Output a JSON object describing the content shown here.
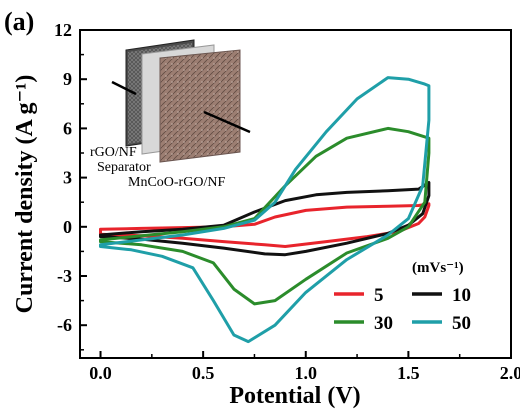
{
  "panel_label": "(a)",
  "inset": {
    "label_rgo": "rGO/NF",
    "label_separator": "Separator",
    "label_mnco": "MnCoO-rGO/NF"
  },
  "legend": {
    "title": "(mVs⁻¹)"
  },
  "chart_data": {
    "type": "line",
    "title": "",
    "xlabel": "Potential (V)",
    "ylabel": "Current density (A g⁻¹)",
    "xlim": [
      -0.1,
      2.0
    ],
    "ylim": [
      -8,
      12
    ],
    "x_ticks": [
      0.0,
      0.5,
      1.0,
      1.5,
      2.0
    ],
    "x_tick_labels": [
      "0.0",
      "0.5",
      "1.0",
      "1.5",
      "2.0"
    ],
    "y_ticks": [
      -6,
      -3,
      0,
      3,
      6,
      9,
      12
    ],
    "y_tick_labels": [
      "-6",
      "-3",
      "0",
      "3",
      "6",
      "9",
      "12"
    ],
    "grid": false,
    "legend_position": "bottom-right",
    "series": [
      {
        "name": "5",
        "color": "#e8242c",
        "anodic": [
          [
            0.0,
            -0.15
          ],
          [
            0.2,
            -0.1
          ],
          [
            0.4,
            -0.05
          ],
          [
            0.6,
            0.0
          ],
          [
            0.75,
            0.15
          ],
          [
            0.85,
            0.6
          ],
          [
            1.0,
            1.0
          ],
          [
            1.2,
            1.2
          ],
          [
            1.4,
            1.25
          ],
          [
            1.55,
            1.3
          ],
          [
            1.6,
            1.4
          ]
        ],
        "cathodic": [
          [
            1.6,
            1.3
          ],
          [
            1.58,
            0.6
          ],
          [
            1.55,
            0.2
          ],
          [
            1.45,
            -0.3
          ],
          [
            1.3,
            -0.6
          ],
          [
            1.1,
            -0.9
          ],
          [
            0.9,
            -1.2
          ],
          [
            0.8,
            -1.1
          ],
          [
            0.6,
            -0.9
          ],
          [
            0.4,
            -0.7
          ],
          [
            0.2,
            -0.55
          ],
          [
            0.0,
            -0.45
          ]
        ]
      },
      {
        "name": "10",
        "color": "#111111",
        "anodic": [
          [
            0.0,
            -0.5
          ],
          [
            0.2,
            -0.3
          ],
          [
            0.4,
            -0.15
          ],
          [
            0.6,
            0.1
          ],
          [
            0.75,
            0.9
          ],
          [
            0.9,
            1.6
          ],
          [
            1.05,
            1.95
          ],
          [
            1.2,
            2.1
          ],
          [
            1.4,
            2.2
          ],
          [
            1.55,
            2.3
          ],
          [
            1.6,
            2.7
          ]
        ],
        "cathodic": [
          [
            1.6,
            1.9
          ],
          [
            1.57,
            0.8
          ],
          [
            1.5,
            0.1
          ],
          [
            1.4,
            -0.4
          ],
          [
            1.2,
            -1.0
          ],
          [
            1.0,
            -1.5
          ],
          [
            0.9,
            -1.7
          ],
          [
            0.8,
            -1.65
          ],
          [
            0.6,
            -1.3
          ],
          [
            0.4,
            -1.0
          ],
          [
            0.2,
            -0.75
          ],
          [
            0.0,
            -0.6
          ]
        ]
      },
      {
        "name": "30",
        "color": "#2b8c2b",
        "anodic": [
          [
            0.0,
            -0.8
          ],
          [
            0.2,
            -0.55
          ],
          [
            0.4,
            -0.3
          ],
          [
            0.6,
            0.0
          ],
          [
            0.75,
            0.5
          ],
          [
            0.9,
            2.5
          ],
          [
            1.05,
            4.3
          ],
          [
            1.2,
            5.4
          ],
          [
            1.4,
            6.0
          ],
          [
            1.5,
            5.8
          ],
          [
            1.6,
            5.4
          ]
        ],
        "cathodic": [
          [
            1.6,
            4.5
          ],
          [
            1.58,
            1.5
          ],
          [
            1.5,
            0.0
          ],
          [
            1.4,
            -0.7
          ],
          [
            1.2,
            -1.6
          ],
          [
            1.0,
            -3.2
          ],
          [
            0.85,
            -4.5
          ],
          [
            0.75,
            -4.7
          ],
          [
            0.65,
            -3.8
          ],
          [
            0.55,
            -2.2
          ],
          [
            0.4,
            -1.5
          ],
          [
            0.2,
            -1.1
          ],
          [
            0.0,
            -0.9
          ]
        ]
      },
      {
        "name": "50",
        "color": "#1f9fa8",
        "anodic": [
          [
            0.0,
            -1.1
          ],
          [
            0.2,
            -0.8
          ],
          [
            0.4,
            -0.5
          ],
          [
            0.6,
            -0.1
          ],
          [
            0.75,
            0.4
          ],
          [
            0.85,
            1.5
          ],
          [
            0.95,
            3.5
          ],
          [
            1.1,
            5.8
          ],
          [
            1.25,
            7.8
          ],
          [
            1.4,
            9.1
          ],
          [
            1.5,
            9.0
          ],
          [
            1.58,
            8.7
          ],
          [
            1.6,
            8.6
          ]
        ],
        "cathodic": [
          [
            1.6,
            6.5
          ],
          [
            1.57,
            2.5
          ],
          [
            1.5,
            0.5
          ],
          [
            1.4,
            -0.5
          ],
          [
            1.2,
            -2.0
          ],
          [
            1.0,
            -4.0
          ],
          [
            0.85,
            -6.0
          ],
          [
            0.72,
            -7.0
          ],
          [
            0.65,
            -6.6
          ],
          [
            0.55,
            -4.5
          ],
          [
            0.45,
            -2.5
          ],
          [
            0.3,
            -1.8
          ],
          [
            0.15,
            -1.4
          ],
          [
            0.0,
            -1.2
          ]
        ]
      }
    ]
  }
}
